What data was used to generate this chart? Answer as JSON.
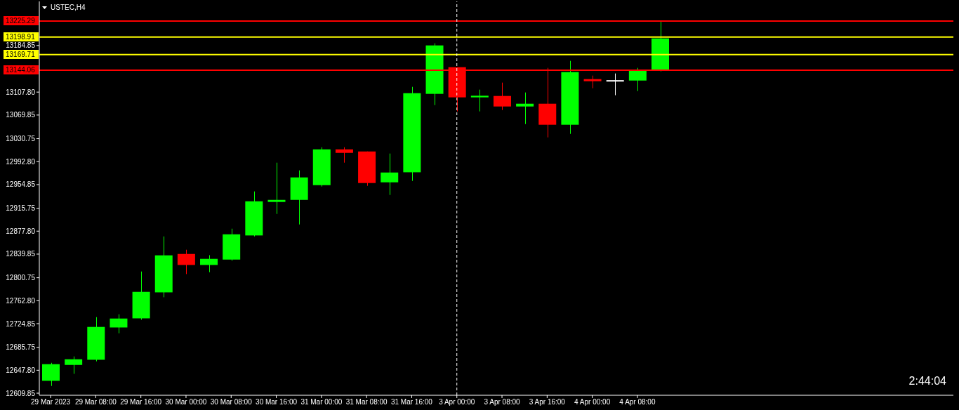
{
  "chart_data": {
    "type": "candlestick",
    "title": "USTEC,H4",
    "categories": [
      "29 Mar 2023",
      null,
      "29 Mar 08:00",
      null,
      "29 Mar 16:00",
      null,
      "30 Mar 00:00",
      null,
      "30 Mar 08:00",
      null,
      "30 Mar 16:00",
      null,
      "31 Mar 00:00",
      null,
      "31 Mar 08:00",
      null,
      "31 Mar 16:00",
      null,
      "3 Apr 00:00",
      null,
      "3 Apr 08:00",
      null,
      "3 Apr 16:00",
      null,
      "4 Apr 00:00",
      null,
      "4 Apr 08:00",
      null
    ],
    "ohlc": [
      [
        12630.3,
        12660.1,
        12621.8,
        12657.8
      ],
      [
        12656.6,
        12670.6,
        12641.9,
        12665.9
      ],
      [
        12665.1,
        12735.6,
        12662.5,
        12719.4
      ],
      [
        12718.5,
        12740.3,
        12708.9,
        12733.3
      ],
      [
        12733.6,
        12811.1,
        12731.3,
        12777.4
      ],
      [
        12776.6,
        12869.1,
        12768.5,
        12837.8
      ],
      [
        12840.1,
        12847.1,
        12806.8,
        12821.9
      ],
      [
        12821.9,
        12838.1,
        12809.9,
        12832.0
      ],
      [
        12830.8,
        12881.9,
        12828.9,
        12872.6
      ],
      [
        12870.7,
        12943.5,
        12869.1,
        12927.2
      ],
      [
        12926.1,
        12991.1,
        12906.3,
        12929.5
      ],
      [
        12929.5,
        12978.3,
        12888.9,
        12966.7
      ],
      [
        12953.9,
        13016.6,
        12951.6,
        13013.1
      ],
      [
        13013.1,
        13016.6,
        12991.1,
        13007.3
      ],
      [
        13009.6,
        13009.6,
        12952.8,
        12957.4
      ],
      [
        12958.6,
        13006.2,
        12937.7,
        12974.8
      ],
      [
        12975.2,
        13116.5,
        12960.9,
        13106.0
      ],
      [
        13104.9,
        13188.5,
        13086.3,
        13185.0
      ],
      [
        13149.0,
        13149.0,
        13075.9,
        13099.1
      ],
      [
        13099.1,
        13111.9,
        13075.9,
        13101.8
      ],
      [
        13101.4,
        13123.5,
        13078.2,
        13084.0
      ],
      [
        13084.0,
        13107.2,
        13054.9,
        13088.6
      ],
      [
        13088.6,
        13147.9,
        13032.9,
        13053.8
      ],
      [
        13053.8,
        13159.5,
        13038.7,
        13140.9
      ],
      [
        13129.3,
        13135.1,
        13114.2,
        13125.8
      ],
      [
        13126.4,
        13138.6,
        13102.6,
        13126.4
      ],
      [
        13126.9,
        13147.9,
        13109.5,
        13144.4
      ],
      [
        13143.2,
        13225.3,
        13142.1,
        13196.6
      ]
    ],
    "colors": [
      "#00ff00",
      "#00ff00",
      "#00ff00",
      "#00ff00",
      "#00ff00",
      "#00ff00",
      "#ff0000",
      "#00ff00",
      "#00ff00",
      "#00ff00",
      "#00ff00",
      "#00ff00",
      "#00ff00",
      "#ff0000",
      "#ff0000",
      "#00ff00",
      "#00ff00",
      "#00ff00",
      "#ff0000",
      "#00ff00",
      "#ff0000",
      "#00ff00",
      "#ff0000",
      "#00ff00",
      "#ff0000",
      "#ffffff",
      "#00ff00",
      "#00ff00"
    ],
    "ylim": [
      12606.4,
      13257.8
    ],
    "yticks": [
      {
        "value": 12609.85,
        "label": "12609.85"
      },
      {
        "value": 12647.8,
        "label": "12647.80"
      },
      {
        "value": 12685.75,
        "label": "12685.75"
      },
      {
        "value": 12724.85,
        "label": "12724.85"
      },
      {
        "value": 12762.8,
        "label": "12762.80"
      },
      {
        "value": 12800.75,
        "label": "12800.75"
      },
      {
        "value": 12839.85,
        "label": "12839.85"
      },
      {
        "value": 12877.8,
        "label": "12877.80"
      },
      {
        "value": 12915.75,
        "label": "12915.75"
      },
      {
        "value": 12954.85,
        "label": "12954.85"
      },
      {
        "value": 12992.8,
        "label": "12992.80"
      },
      {
        "value": 13030.75,
        "label": "13030.75"
      },
      {
        "value": 13069.85,
        "label": "13069.85"
      },
      {
        "value": 13107.8,
        "label": "13107.80"
      },
      {
        "value": 13184.85,
        "label": "13184.85"
      }
    ],
    "ref_lines": [
      {
        "axis": "y",
        "value": 13225.29,
        "label": "13225.29",
        "color": "#ff0000",
        "line_style": "solid"
      },
      {
        "axis": "y",
        "value": 13198.91,
        "label": "13198.91",
        "color": "#ffff00",
        "line_style": "solid"
      },
      {
        "axis": "y",
        "value": 13169.71,
        "label": "13169.71",
        "color": "#ffff00",
        "line_style": "solid"
      },
      {
        "axis": "y",
        "value": 13144.06,
        "label": "13144.06",
        "color": "#ff0000",
        "line_style": "solid"
      },
      {
        "axis": "x",
        "value": "3 Apr 00:00",
        "color": "#ffffff",
        "line_style": "dashed"
      }
    ],
    "annotations": [
      "2:44:04"
    ]
  }
}
